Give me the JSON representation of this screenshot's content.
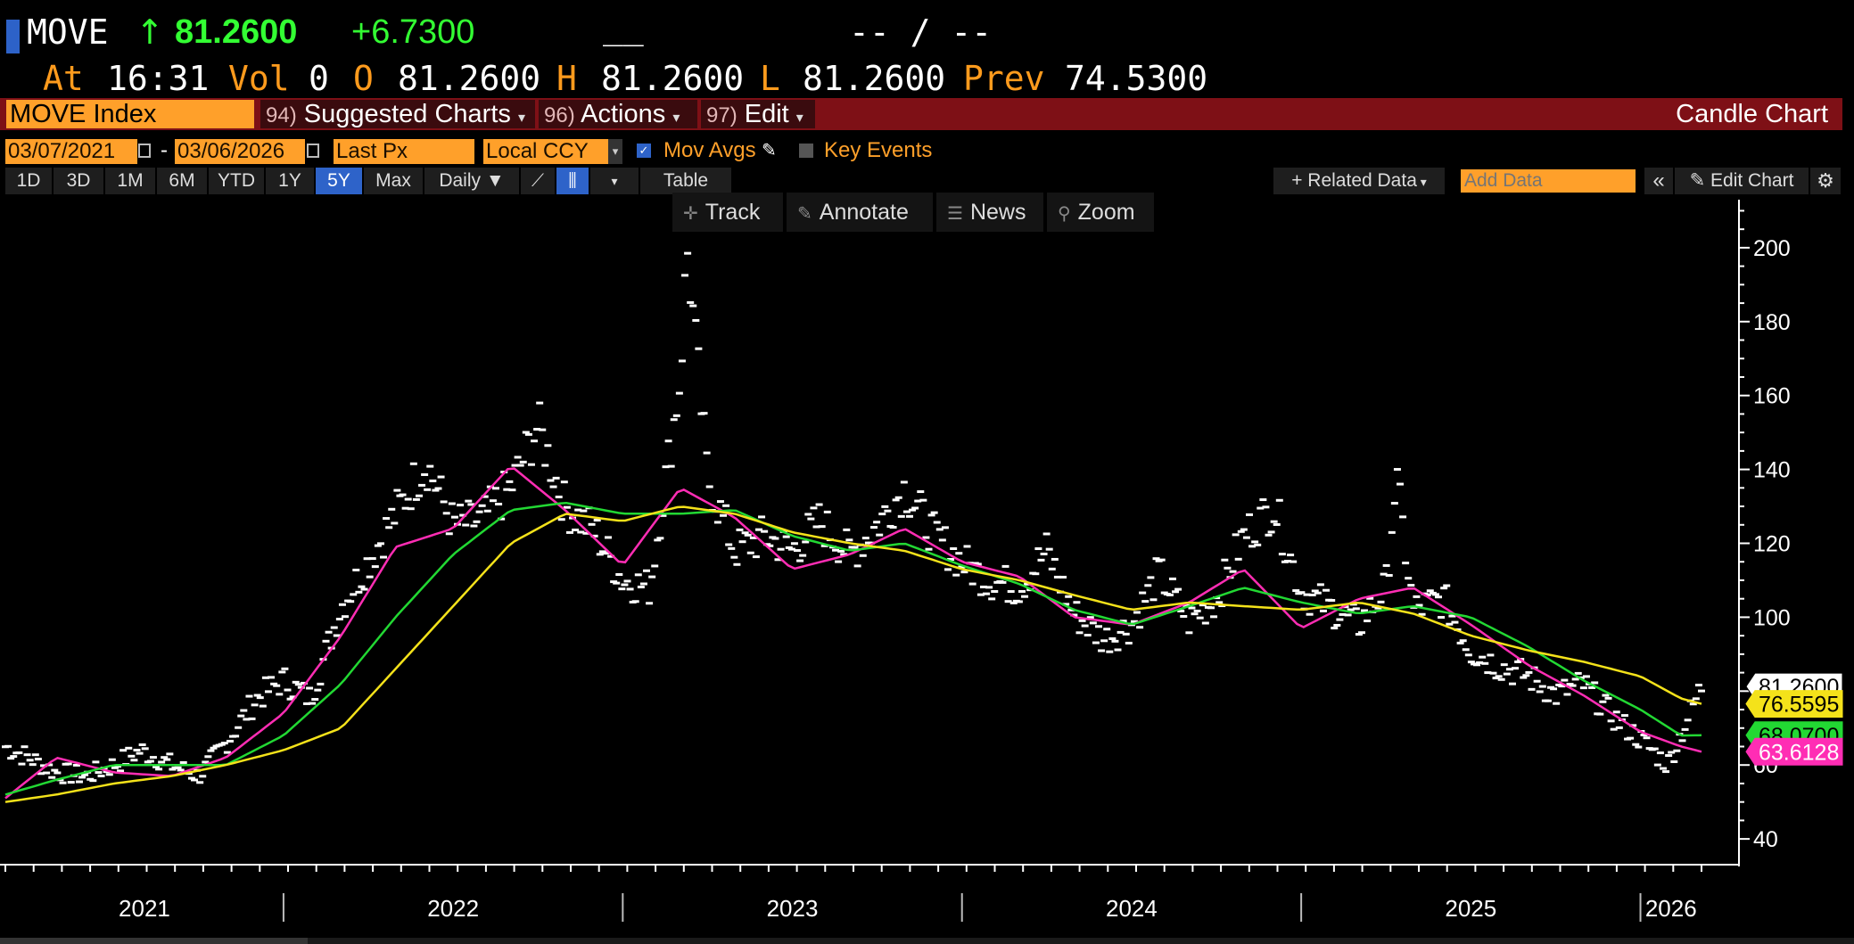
{
  "header": {
    "ticker": "MOVE",
    "arrow": "↑",
    "last": "81.2600",
    "change": "+6.7300",
    "blank": "__",
    "bidask": "-- / --",
    "at_label": "At",
    "time": "16:31",
    "vol_label": "Vol",
    "vol": "0",
    "open_label": "O",
    "open": "81.2600",
    "high_label": "H",
    "high": "81.2600",
    "low_label": "L",
    "low": "81.2600",
    "prev_label": "Prev",
    "prev": "74.5300"
  },
  "menubar": {
    "security": "MOVE Index",
    "suggested_num": "94)",
    "suggested": "Suggested Charts",
    "actions_num": "96)",
    "actions": "Actions",
    "edit_num": "97)",
    "edit": "Edit",
    "chart_type": "Candle Chart"
  },
  "settings": {
    "start_date": "03/07/2021",
    "dash": "-",
    "end_date": "03/06/2026",
    "field": "Last Px",
    "currency": "Local CCY",
    "mov_avgs": "Mov Avgs",
    "key_events": "Key Events"
  },
  "periods": [
    "1D",
    "3D",
    "1M",
    "6M",
    "YTD",
    "1Y",
    "5Y",
    "Max"
  ],
  "selected_period": "5Y",
  "frequency": "Daily",
  "table_label": "Table",
  "related_data": "Related Data",
  "add_data_placeholder": "Add Data",
  "edit_chart": "Edit Chart",
  "tools": {
    "track": "Track",
    "annotate": "Annotate",
    "news": "News",
    "zoom": "Zoom"
  },
  "colors": {
    "accent_orange": "#ffa02a",
    "menu_red": "#7e1016",
    "selected_blue": "#2e63c9",
    "up_green": "#33ff33",
    "ma_short": "#ff2db4",
    "ma_mid": "#22d833",
    "ma_long": "#f4e21a",
    "price": "#ffffff"
  },
  "chart_data": {
    "type": "line",
    "title": "",
    "xlabel": "",
    "ylabel": "",
    "x_tick_labels": [
      "2021",
      "2022",
      "2023",
      "2024",
      "2025",
      "2026"
    ],
    "y_ticks": [
      40,
      60,
      80,
      100,
      120,
      140,
      160,
      180,
      200
    ],
    "ylim": [
      34,
      213
    ],
    "xlim": [
      2021.18,
      2026.18
    ],
    "grid": false,
    "y_axis_side": "right",
    "last_value_labels": [
      {
        "value": "81.2600",
        "color": "#ffffff",
        "text_color": "#000000",
        "y": 81.26
      },
      {
        "value": "76.5595",
        "color": "#f4e21a",
        "text_color": "#000000",
        "y": 76.56
      },
      {
        "value": "68.0700",
        "color": "#22d833",
        "text_color": "#000000",
        "y": 68.07
      },
      {
        "value": "63.6128",
        "color": "#ff2db4",
        "text_color": "#ffffff",
        "y": 63.61
      }
    ],
    "price_series": {
      "name": "MOVE Index",
      "style": "candles",
      "x": [
        2021.18,
        2021.25,
        2021.33,
        2021.42,
        2021.5,
        2021.58,
        2021.67,
        2021.75,
        2021.83,
        2021.92,
        2022.0,
        2022.08,
        2022.17,
        2022.25,
        2022.33,
        2022.42,
        2022.5,
        2022.58,
        2022.67,
        2022.75,
        2022.83,
        2022.92,
        2023.0,
        2023.08,
        2023.17,
        2023.19,
        2023.25,
        2023.33,
        2023.42,
        2023.5,
        2023.58,
        2023.67,
        2023.75,
        2023.83,
        2023.92,
        2024.0,
        2024.08,
        2024.17,
        2024.25,
        2024.33,
        2024.42,
        2024.5,
        2024.58,
        2024.67,
        2024.75,
        2024.83,
        2024.92,
        2025.0,
        2025.08,
        2025.17,
        2025.25,
        2025.28,
        2025.33,
        2025.42,
        2025.5,
        2025.58,
        2025.67,
        2025.75,
        2025.83,
        2025.92,
        2026.0,
        2026.08,
        2026.18
      ],
      "values": [
        65,
        62,
        58,
        57,
        60,
        64,
        60,
        57,
        66,
        78,
        83,
        78,
        103,
        115,
        128,
        142,
        125,
        126,
        135,
        152,
        130,
        123,
        110,
        108,
        165,
        200,
        138,
        118,
        122,
        118,
        126,
        117,
        125,
        135,
        122,
        115,
        110,
        108,
        118,
        101,
        94,
        98,
        112,
        99,
        105,
        122,
        130,
        107,
        103,
        98,
        108,
        138,
        102,
        105,
        91,
        87,
        84,
        79,
        82,
        73,
        67,
        60,
        81.26
      ]
    },
    "series": [
      {
        "x": [
          2021.18,
          2021.33,
          2021.5,
          2021.67,
          2021.83,
          2022.0,
          2022.17,
          2022.33,
          2022.5,
          2022.67,
          2022.83,
          2023.0,
          2023.17,
          2023.33,
          2023.5,
          2023.67,
          2023.83,
          2024.0,
          2024.17,
          2024.33,
          2024.5,
          2024.67,
          2024.83,
          2025.0,
          2025.17,
          2025.33,
          2025.5,
          2025.67,
          2025.83,
          2026.0,
          2026.12,
          2026.18
        ],
        "values": [
          51,
          62,
          58,
          57,
          62,
          74,
          95,
          119,
          124,
          141,
          129,
          114,
          135,
          127,
          113,
          117,
          124,
          115,
          111,
          100,
          98,
          104,
          113,
          97,
          105,
          108,
          98,
          87,
          79,
          69,
          65,
          63.61
        ],
        "color": "#ff2db4"
      },
      {
        "x": [
          2021.18,
          2021.33,
          2021.5,
          2021.67,
          2021.83,
          2022.0,
          2022.17,
          2022.33,
          2022.5,
          2022.67,
          2022.83,
          2023.0,
          2023.17,
          2023.33,
          2023.5,
          2023.67,
          2023.83,
          2024.0,
          2024.17,
          2024.33,
          2024.5,
          2024.67,
          2024.83,
          2025.0,
          2025.17,
          2025.33,
          2025.5,
          2025.67,
          2025.83,
          2026.0,
          2026.12,
          2026.18
        ],
        "values": [
          52,
          56,
          60,
          60,
          60,
          68,
          82,
          100,
          117,
          129,
          131,
          128,
          128,
          129,
          122,
          118,
          120,
          114,
          109,
          102,
          98,
          103,
          108,
          104,
          101,
          103,
          100,
          92,
          83,
          75,
          68,
          68.07
        ],
        "color": "#22d833"
      },
      {
        "x": [
          2021.18,
          2021.33,
          2021.5,
          2021.67,
          2021.83,
          2022.0,
          2022.17,
          2022.33,
          2022.5,
          2022.67,
          2022.83,
          2023.0,
          2023.17,
          2023.33,
          2023.5,
          2023.67,
          2023.83,
          2024.0,
          2024.17,
          2024.33,
          2024.5,
          2024.67,
          2024.83,
          2025.0,
          2025.17,
          2025.33,
          2025.5,
          2025.67,
          2025.83,
          2026.0,
          2026.12,
          2026.18
        ],
        "values": [
          50,
          52,
          55,
          57,
          60,
          64,
          70,
          86,
          103,
          120,
          128,
          126,
          130,
          128,
          123,
          120,
          118,
          113,
          110,
          106,
          102,
          104,
          103,
          102,
          104,
          101,
          95,
          91,
          88,
          84,
          78,
          76.56
        ],
        "color": "#f4e21a"
      }
    ]
  }
}
